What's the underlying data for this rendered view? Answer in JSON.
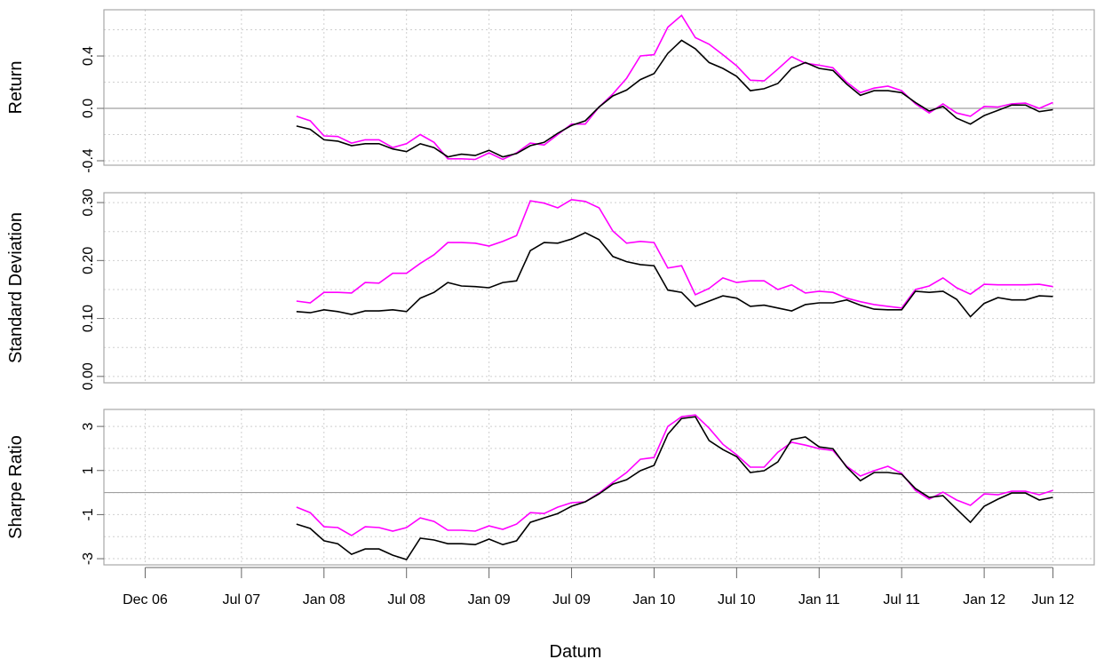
{
  "chart_data": [
    {
      "type": "line",
      "ylabel": "Return",
      "x": [
        "2007-11",
        "2007-12",
        "2008-01",
        "2008-02",
        "2008-03",
        "2008-04",
        "2008-05",
        "2008-06",
        "2008-07",
        "2008-08",
        "2008-09",
        "2008-10",
        "2008-11",
        "2008-12",
        "2009-01",
        "2009-02",
        "2009-03",
        "2009-04",
        "2009-05",
        "2009-06",
        "2009-07",
        "2009-08",
        "2009-09",
        "2009-10",
        "2009-11",
        "2009-12",
        "2010-01",
        "2010-02",
        "2010-03",
        "2010-04",
        "2010-05",
        "2010-06",
        "2010-07",
        "2010-08",
        "2010-09",
        "2010-10",
        "2010-11",
        "2010-12",
        "2011-01",
        "2011-02",
        "2011-03",
        "2011-04",
        "2011-05",
        "2011-06",
        "2011-07",
        "2011-08",
        "2011-09",
        "2011-10",
        "2011-11",
        "2011-12",
        "2012-01",
        "2012-02",
        "2012-03",
        "2012-04",
        "2012-05",
        "2012-06"
      ],
      "xlim": [
        "2006-09",
        "2012-09"
      ],
      "ylim": [
        -0.434,
        0.753
      ],
      "yticks": [
        -0.4,
        {
          "value": 0,
          "label": "0.0"
        },
        0.4
      ],
      "ygrid": [
        -0.4,
        -0.2,
        0,
        0.2,
        0.4,
        0.6
      ],
      "hline": 0,
      "series": [
        {
          "color": "#ff00ff",
          "values": [
            -0.06,
            -0.095,
            -0.21,
            -0.215,
            -0.265,
            -0.24,
            -0.24,
            -0.3,
            -0.27,
            -0.2,
            -0.26,
            -0.385,
            -0.385,
            -0.39,
            -0.34,
            -0.39,
            -0.34,
            -0.265,
            -0.28,
            -0.2,
            -0.12,
            -0.12,
            0.01,
            0.11,
            0.23,
            0.4,
            0.41,
            0.62,
            0.71,
            0.54,
            0.49,
            0.41,
            0.325,
            0.215,
            0.21,
            0.3,
            0.395,
            0.345,
            0.33,
            0.31,
            0.2,
            0.12,
            0.155,
            0.17,
            0.135,
            0.035,
            -0.035,
            0.035,
            -0.035,
            -0.06,
            0.015,
            0.01,
            0.035,
            0.04,
            0.0,
            0.045
          ]
        },
        {
          "color": "#000000",
          "values": [
            -0.135,
            -0.16,
            -0.24,
            -0.25,
            -0.285,
            -0.27,
            -0.27,
            -0.31,
            -0.33,
            -0.27,
            -0.3,
            -0.37,
            -0.35,
            -0.36,
            -0.32,
            -0.37,
            -0.345,
            -0.285,
            -0.26,
            -0.19,
            -0.13,
            -0.095,
            0.01,
            0.095,
            0.14,
            0.22,
            0.265,
            0.42,
            0.52,
            0.455,
            0.35,
            0.305,
            0.245,
            0.135,
            0.15,
            0.19,
            0.305,
            0.35,
            0.305,
            0.29,
            0.185,
            0.1,
            0.135,
            0.135,
            0.12,
            0.045,
            -0.02,
            0.015,
            -0.075,
            -0.12,
            -0.055,
            -0.015,
            0.025,
            0.025,
            -0.025,
            -0.01
          ]
        }
      ]
    },
    {
      "type": "line",
      "ylabel": "Standard Deviation",
      "x": [
        "2007-11",
        "2007-12",
        "2008-01",
        "2008-02",
        "2008-03",
        "2008-04",
        "2008-05",
        "2008-06",
        "2008-07",
        "2008-08",
        "2008-09",
        "2008-10",
        "2008-11",
        "2008-12",
        "2009-01",
        "2009-02",
        "2009-03",
        "2009-04",
        "2009-05",
        "2009-06",
        "2009-07",
        "2009-08",
        "2009-09",
        "2009-10",
        "2009-11",
        "2009-12",
        "2010-01",
        "2010-02",
        "2010-03",
        "2010-04",
        "2010-05",
        "2010-06",
        "2010-07",
        "2010-08",
        "2010-09",
        "2010-10",
        "2010-11",
        "2010-12",
        "2011-01",
        "2011-02",
        "2011-03",
        "2011-04",
        "2011-05",
        "2011-06",
        "2011-07",
        "2011-08",
        "2011-09",
        "2011-10",
        "2011-11",
        "2011-12",
        "2012-01",
        "2012-02",
        "2012-03",
        "2012-04",
        "2012-05",
        "2012-06"
      ],
      "xlim": [
        "2006-09",
        "2012-09"
      ],
      "ylim": [
        -0.011,
        0.317
      ],
      "yticks": [
        {
          "value": 0,
          "label": "0.00"
        },
        {
          "value": 0.1,
          "label": "0.10"
        },
        {
          "value": 0.2,
          "label": "0.20"
        },
        {
          "value": 0.3,
          "label": "0.30"
        }
      ],
      "ygrid": [
        0,
        0.05,
        0.1,
        0.15,
        0.2,
        0.25,
        0.3
      ],
      "series": [
        {
          "color": "#ff00ff",
          "values": [
            0.13,
            0.127,
            0.145,
            0.145,
            0.144,
            0.162,
            0.161,
            0.178,
            0.178,
            0.195,
            0.21,
            0.231,
            0.231,
            0.23,
            0.225,
            0.233,
            0.243,
            0.303,
            0.299,
            0.291,
            0.305,
            0.302,
            0.291,
            0.251,
            0.23,
            0.233,
            0.231,
            0.187,
            0.191,
            0.141,
            0.152,
            0.17,
            0.162,
            0.165,
            0.165,
            0.15,
            0.158,
            0.144,
            0.147,
            0.145,
            0.135,
            0.129,
            0.124,
            0.121,
            0.118,
            0.15,
            0.156,
            0.17,
            0.153,
            0.142,
            0.159,
            0.158,
            0.158,
            0.158,
            0.159,
            0.155
          ]
        },
        {
          "color": "#000000",
          "values": [
            0.112,
            0.11,
            0.115,
            0.112,
            0.107,
            0.113,
            0.113,
            0.115,
            0.112,
            0.135,
            0.145,
            0.162,
            0.156,
            0.155,
            0.153,
            0.162,
            0.165,
            0.217,
            0.231,
            0.23,
            0.237,
            0.248,
            0.236,
            0.207,
            0.198,
            0.193,
            0.191,
            0.149,
            0.145,
            0.121,
            0.13,
            0.139,
            0.135,
            0.121,
            0.123,
            0.118,
            0.113,
            0.124,
            0.127,
            0.127,
            0.132,
            0.123,
            0.116,
            0.115,
            0.115,
            0.147,
            0.145,
            0.147,
            0.133,
            0.103,
            0.126,
            0.136,
            0.132,
            0.132,
            0.139,
            0.138
          ]
        }
      ]
    },
    {
      "type": "line",
      "ylabel": "Sharpe Ratio",
      "xlabel": "Datum",
      "x": [
        "2007-11",
        "2007-12",
        "2008-01",
        "2008-02",
        "2008-03",
        "2008-04",
        "2008-05",
        "2008-06",
        "2008-07",
        "2008-08",
        "2008-09",
        "2008-10",
        "2008-11",
        "2008-12",
        "2009-01",
        "2009-02",
        "2009-03",
        "2009-04",
        "2009-05",
        "2009-06",
        "2009-07",
        "2009-08",
        "2009-09",
        "2009-10",
        "2009-11",
        "2009-12",
        "2010-01",
        "2010-02",
        "2010-03",
        "2010-04",
        "2010-05",
        "2010-06",
        "2010-07",
        "2010-08",
        "2010-09",
        "2010-10",
        "2010-11",
        "2010-12",
        "2011-01",
        "2011-02",
        "2011-03",
        "2011-04",
        "2011-05",
        "2011-06",
        "2011-07",
        "2011-08",
        "2011-09",
        "2011-10",
        "2011-11",
        "2011-12",
        "2012-01",
        "2012-02",
        "2012-03",
        "2012-04",
        "2012-05",
        "2012-06"
      ],
      "xlim": [
        "2006-09",
        "2012-09"
      ],
      "xticks": [
        {
          "value": "2006-12",
          "label": "Dec 06"
        },
        {
          "value": "2007-07",
          "label": "Jul 07"
        },
        {
          "value": "2008-01",
          "label": "Jan 08"
        },
        {
          "value": "2008-07",
          "label": "Jul 08"
        },
        {
          "value": "2009-01",
          "label": "Jan 09"
        },
        {
          "value": "2009-07",
          "label": "Jul 09"
        },
        {
          "value": "2010-01",
          "label": "Jan 10"
        },
        {
          "value": "2010-07",
          "label": "Jul 10"
        },
        {
          "value": "2011-01",
          "label": "Jan 11"
        },
        {
          "value": "2011-07",
          "label": "Jul 11"
        },
        {
          "value": "2012-01",
          "label": "Jan 12"
        },
        {
          "value": "2012-06",
          "label": "Jun 12"
        }
      ],
      "ylim": [
        -3.28,
        3.77
      ],
      "yticks": [
        -3,
        -1,
        1,
        3
      ],
      "ygrid": [
        -3,
        -2,
        -1,
        0,
        1,
        2,
        3
      ],
      "hline": 0,
      "series": [
        {
          "color": "#ff00ff",
          "values": [
            -0.66,
            -0.91,
            -1.55,
            -1.59,
            -1.95,
            -1.55,
            -1.59,
            -1.75,
            -1.59,
            -1.15,
            -1.31,
            -1.71,
            -1.71,
            -1.75,
            -1.51,
            -1.67,
            -1.43,
            -0.91,
            -0.95,
            -0.66,
            -0.46,
            -0.42,
            -0.02,
            0.46,
            0.91,
            1.51,
            1.59,
            3.0,
            3.44,
            3.52,
            2.92,
            2.19,
            1.71,
            1.15,
            1.15,
            1.83,
            2.28,
            2.15,
            1.99,
            1.91,
            1.19,
            0.75,
            0.99,
            1.19,
            0.87,
            0.1,
            -0.3,
            0.02,
            -0.34,
            -0.58,
            -0.06,
            -0.1,
            0.06,
            0.06,
            -0.1,
            0.1
          ]
        },
        {
          "color": "#000000",
          "values": [
            -1.43,
            -1.63,
            -2.19,
            -2.32,
            -2.8,
            -2.56,
            -2.56,
            -2.84,
            -3.04,
            -2.07,
            -2.15,
            -2.32,
            -2.32,
            -2.36,
            -2.11,
            -2.36,
            -2.19,
            -1.35,
            -1.15,
            -0.95,
            -0.62,
            -0.42,
            -0.06,
            0.38,
            0.58,
            0.99,
            1.23,
            2.64,
            3.36,
            3.44,
            2.36,
            1.95,
            1.63,
            0.91,
            0.99,
            1.39,
            2.4,
            2.52,
            2.07,
            1.99,
            1.15,
            0.54,
            0.91,
            0.91,
            0.83,
            0.18,
            -0.22,
            -0.14,
            -0.75,
            -1.35,
            -0.62,
            -0.3,
            -0.02,
            -0.02,
            -0.34,
            -0.22
          ]
        }
      ]
    }
  ]
}
